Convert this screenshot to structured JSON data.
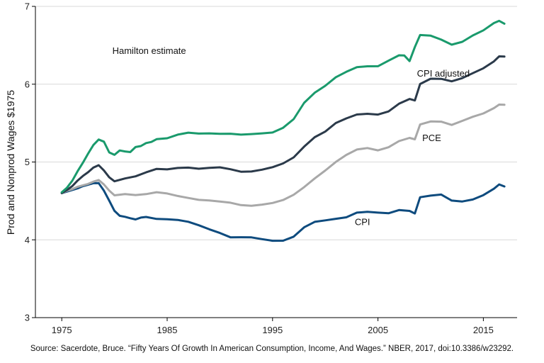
{
  "chart_data": {
    "type": "line",
    "ylabel": "Prod and Nonprod Wages $1975",
    "xlabel": "",
    "xlim": [
      1972.5,
      2018.2
    ],
    "ylim": [
      3,
      7
    ],
    "xticks": [
      1975,
      1985,
      1995,
      2005,
      2015
    ],
    "yticks": [
      3,
      4,
      5,
      6,
      7
    ],
    "grid": "horizontal",
    "source": "Source: Sacerdote, Bruce. “Fifty Years Of Growth In American Consumption, Income, And Wages.” NBER, 2017, doi:10.3386/w23292.",
    "series": [
      {
        "name": "Hamilton estimate",
        "color": "#1a9a6c",
        "label_at": [
          1979.8,
          6.39
        ],
        "x": [
          1975,
          1975.5,
          1976,
          1976.5,
          1977,
          1977.5,
          1978,
          1978.5,
          1979,
          1979.5,
          1980,
          1980.5,
          1981,
          1981.5,
          1982,
          1982.5,
          1983,
          1983.5,
          1984,
          1985,
          1986,
          1987,
          1988,
          1989,
          1990,
          1991,
          1992,
          1993,
          1994,
          1995,
          1996,
          1997,
          1998,
          1999,
          2000,
          2001,
          2002,
          2003,
          2004,
          2005,
          2006,
          2007,
          2007.5,
          2008,
          2008.5,
          2009,
          2010,
          2011,
          2012,
          2013,
          2014,
          2015,
          2016,
          2016.5,
          2017
        ],
        "values": [
          4.61,
          4.66,
          4.75,
          4.88,
          5.0,
          5.12,
          5.22,
          5.28,
          5.25,
          5.12,
          5.1,
          5.16,
          5.14,
          5.12,
          5.18,
          5.2,
          5.25,
          5.27,
          5.3,
          5.3,
          5.34,
          5.37,
          5.37,
          5.38,
          5.37,
          5.36,
          5.34,
          5.35,
          5.37,
          5.39,
          5.45,
          5.55,
          5.75,
          5.88,
          5.98,
          6.1,
          6.17,
          6.22,
          6.22,
          6.22,
          6.3,
          6.38,
          6.38,
          6.3,
          6.47,
          6.62,
          6.62,
          6.58,
          6.52,
          6.55,
          6.62,
          6.68,
          6.78,
          6.82,
          6.79
        ]
      },
      {
        "name": "CPI adjusted",
        "color": "#2b3a4a",
        "label_at": [
          2008.7,
          6.1
        ],
        "x": [
          1975,
          1975.5,
          1976,
          1976.5,
          1977,
          1977.5,
          1978,
          1978.5,
          1979,
          1979.5,
          1980,
          1981,
          1982,
          1983,
          1984,
          1985,
          1986,
          1987,
          1988,
          1989,
          1990,
          1991,
          1992,
          1993,
          1994,
          1995,
          1996,
          1997,
          1998,
          1999,
          2000,
          2001,
          2002,
          2003,
          2004,
          2005,
          2006,
          2007,
          2008,
          2008.5,
          2009,
          2010,
          2011,
          2012,
          2013,
          2014,
          2015,
          2016,
          2016.5,
          2017
        ],
        "values": [
          4.6,
          4.63,
          4.68,
          4.76,
          4.83,
          4.88,
          4.93,
          4.95,
          4.88,
          4.8,
          4.76,
          4.8,
          4.82,
          4.86,
          4.9,
          4.9,
          4.93,
          4.94,
          4.92,
          4.92,
          4.92,
          4.9,
          4.88,
          4.89,
          4.91,
          4.93,
          4.97,
          5.05,
          5.2,
          5.33,
          5.4,
          5.5,
          5.55,
          5.6,
          5.62,
          5.62,
          5.66,
          5.75,
          5.8,
          5.78,
          6.0,
          6.08,
          6.08,
          6.04,
          6.07,
          6.13,
          6.2,
          6.3,
          6.37,
          6.36
        ]
      },
      {
        "name": "PCE",
        "color": "#a8a8a8",
        "label_at": [
          2009.2,
          5.27
        ],
        "x": [
          1975,
          1975.5,
          1976,
          1976.5,
          1977,
          1977.5,
          1978,
          1978.5,
          1979,
          1979.5,
          1980,
          1981,
          1982,
          1983,
          1984,
          1985,
          1986,
          1987,
          1988,
          1989,
          1990,
          1991,
          1992,
          1993,
          1994,
          1995,
          1996,
          1997,
          1998,
          1999,
          2000,
          2001,
          2002,
          2003,
          2004,
          2005,
          2006,
          2007,
          2008,
          2008.5,
          2009,
          2010,
          2011,
          2012,
          2013,
          2014,
          2015,
          2016,
          2016.5,
          2017
        ],
        "values": [
          4.6,
          4.62,
          4.64,
          4.68,
          4.71,
          4.73,
          4.75,
          4.76,
          4.7,
          4.63,
          4.58,
          4.6,
          4.58,
          4.58,
          4.6,
          4.59,
          4.57,
          4.55,
          4.52,
          4.5,
          4.48,
          4.47,
          4.45,
          4.45,
          4.46,
          4.47,
          4.5,
          4.57,
          4.68,
          4.8,
          4.9,
          5.0,
          5.08,
          5.15,
          5.18,
          5.16,
          5.2,
          5.27,
          5.3,
          5.28,
          5.48,
          5.53,
          5.53,
          5.48,
          5.52,
          5.57,
          5.62,
          5.7,
          5.75,
          5.74
        ]
      },
      {
        "name": "CPI",
        "color": "#0e4b7e",
        "label_at": [
          2002.8,
          4.19
        ],
        "x": [
          1975,
          1975.5,
          1976,
          1976.5,
          1977,
          1977.5,
          1978,
          1978.5,
          1979,
          1979.5,
          1980,
          1980.5,
          1981,
          1981.5,
          1982,
          1982.5,
          1983,
          1984,
          1985,
          1986,
          1987,
          1988,
          1989,
          1990,
          1991,
          1992,
          1993,
          1994,
          1995,
          1996,
          1997,
          1998,
          1999,
          2000,
          2001,
          2002,
          2003,
          2004,
          2005,
          2006,
          2007,
          2008,
          2008.5,
          2009,
          2010,
          2011,
          2012,
          2013,
          2014,
          2015,
          2016,
          2016.5,
          2017
        ],
        "values": [
          4.6,
          4.61,
          4.63,
          4.66,
          4.7,
          4.72,
          4.73,
          4.72,
          4.62,
          4.5,
          4.38,
          4.32,
          4.3,
          4.27,
          4.25,
          4.28,
          4.3,
          4.28,
          4.27,
          4.25,
          4.22,
          4.18,
          4.14,
          4.1,
          4.04,
          4.03,
          4.02,
          4.0,
          3.99,
          4.0,
          4.05,
          4.16,
          4.22,
          4.24,
          4.27,
          4.3,
          4.36,
          4.36,
          4.34,
          4.33,
          4.38,
          4.38,
          4.35,
          4.55,
          4.56,
          4.57,
          4.5,
          4.5,
          4.53,
          4.58,
          4.65,
          4.7,
          4.68
        ]
      }
    ]
  }
}
